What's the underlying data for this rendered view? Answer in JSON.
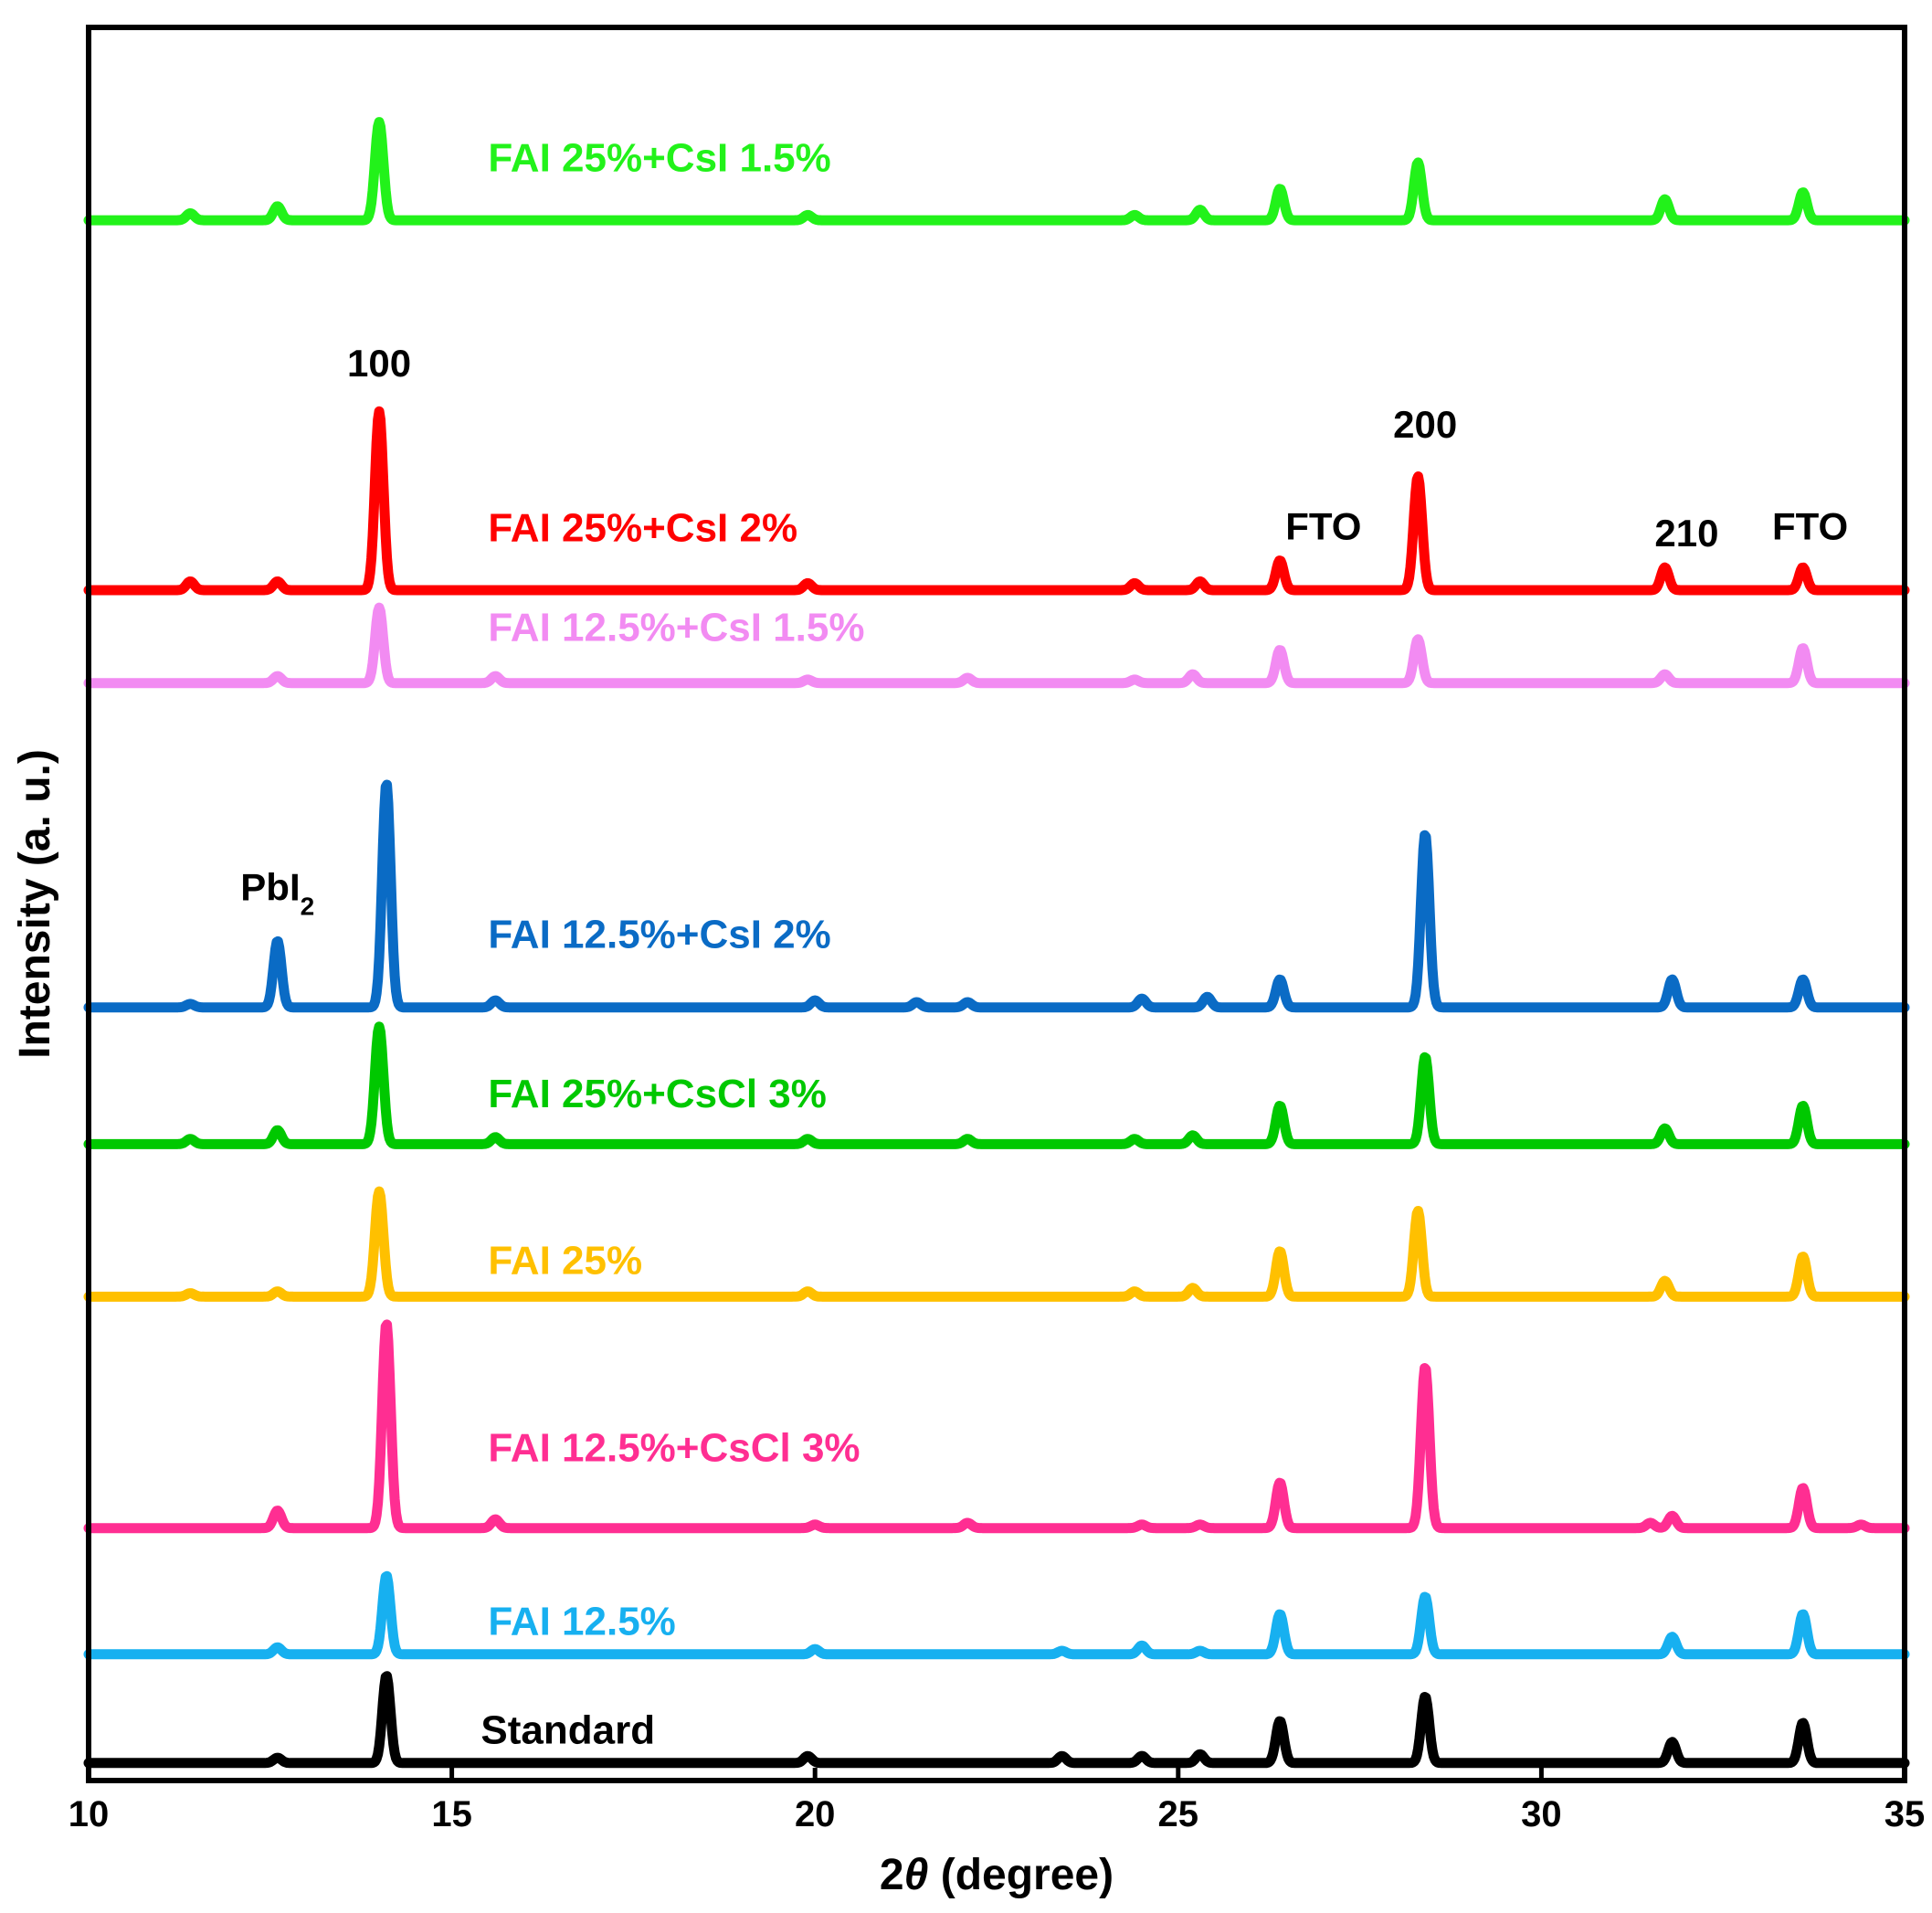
{
  "chart_data": {
    "type": "line",
    "title": "",
    "xlabel_prefix": "2",
    "xlabel_symbol": "θ",
    "xlabel_suffix": " (degree)",
    "ylabel": "Intensity (a. u.)",
    "xlim": [
      10,
      35
    ],
    "ylim": [
      0,
      100
    ],
    "xticks": [
      10,
      15,
      20,
      25,
      30,
      35
    ],
    "grid": false,
    "series": [
      {
        "name": "Standard",
        "color": "#000000",
        "baseline": 1.0,
        "peaks": [
          [
            12.6,
            0.3
          ],
          [
            14.1,
            5.0
          ],
          [
            19.9,
            0.4
          ],
          [
            23.4,
            0.4
          ],
          [
            24.5,
            0.4
          ],
          [
            25.3,
            0.5
          ],
          [
            26.4,
            2.4
          ],
          [
            28.4,
            3.8
          ],
          [
            31.8,
            1.2
          ],
          [
            33.6,
            2.3
          ]
        ]
      },
      {
        "name": "FAI 12.5%",
        "color": "#17B0F0",
        "baseline": 7.2,
        "peaks": [
          [
            12.6,
            0.4
          ],
          [
            14.1,
            4.5
          ],
          [
            20.0,
            0.3
          ],
          [
            23.4,
            0.2
          ],
          [
            24.5,
            0.5
          ],
          [
            25.3,
            0.2
          ],
          [
            26.4,
            2.3
          ],
          [
            28.4,
            3.3
          ],
          [
            31.8,
            1.0
          ],
          [
            33.6,
            2.3
          ]
        ]
      },
      {
        "name": "FAI 12.5%+CsCl 3%",
        "color": "#FF2E92",
        "baseline": 14.4,
        "peaks": [
          [
            12.6,
            1.0
          ],
          [
            14.1,
            11.7
          ],
          [
            15.6,
            0.5
          ],
          [
            20.0,
            0.2
          ],
          [
            22.1,
            0.3
          ],
          [
            24.5,
            0.2
          ],
          [
            25.3,
            0.2
          ],
          [
            26.4,
            2.6
          ],
          [
            28.4,
            9.2
          ],
          [
            31.5,
            0.3
          ],
          [
            31.8,
            0.7
          ],
          [
            33.6,
            2.3
          ],
          [
            34.4,
            0.2
          ]
        ]
      },
      {
        "name": "FAI 25%",
        "color": "#FFC000",
        "baseline": 27.6,
        "peaks": [
          [
            11.4,
            0.2
          ],
          [
            12.6,
            0.3
          ],
          [
            14.0,
            6.0
          ],
          [
            19.9,
            0.3
          ],
          [
            24.4,
            0.3
          ],
          [
            25.2,
            0.5
          ],
          [
            26.4,
            2.6
          ],
          [
            28.3,
            4.9
          ],
          [
            31.7,
            0.9
          ],
          [
            33.6,
            2.3
          ]
        ]
      },
      {
        "name": "FAI 25%+CsCl 3%",
        "color": "#00C800",
        "baseline": 36.3,
        "peaks": [
          [
            11.4,
            0.3
          ],
          [
            12.6,
            0.8
          ],
          [
            14.0,
            6.7
          ],
          [
            15.6,
            0.4
          ],
          [
            19.9,
            0.3
          ],
          [
            22.1,
            0.3
          ],
          [
            24.4,
            0.3
          ],
          [
            25.2,
            0.5
          ],
          [
            26.4,
            2.2
          ],
          [
            28.4,
            5.0
          ],
          [
            31.7,
            0.9
          ],
          [
            33.6,
            2.2
          ]
        ]
      },
      {
        "name": "FAI 12.5%+CsI 2%",
        "color": "#0A6BC5",
        "baseline": 44.1,
        "peaks": [
          [
            11.4,
            0.2
          ],
          [
            12.6,
            3.8
          ],
          [
            14.1,
            12.8
          ],
          [
            15.6,
            0.4
          ],
          [
            20.0,
            0.4
          ],
          [
            21.4,
            0.3
          ],
          [
            22.1,
            0.3
          ],
          [
            24.5,
            0.5
          ],
          [
            25.4,
            0.6
          ],
          [
            26.4,
            1.6
          ],
          [
            28.4,
            9.9
          ],
          [
            31.8,
            1.6
          ],
          [
            33.6,
            1.6
          ]
        ]
      },
      {
        "name": "FAI 12.5%+CsI 1.5%",
        "color": "#F28BF2",
        "baseline": 62.6,
        "peaks": [
          [
            12.6,
            0.4
          ],
          [
            14.0,
            4.3
          ],
          [
            15.6,
            0.4
          ],
          [
            19.9,
            0.2
          ],
          [
            22.1,
            0.3
          ],
          [
            24.4,
            0.2
          ],
          [
            25.2,
            0.5
          ],
          [
            26.4,
            1.9
          ],
          [
            28.3,
            2.5
          ],
          [
            31.7,
            0.5
          ],
          [
            33.6,
            2.0
          ]
        ]
      },
      {
        "name": "FAI 25%+CsI 2%",
        "color": "#FF0000",
        "baseline": 67.9,
        "peaks": [
          [
            11.4,
            0.5
          ],
          [
            12.6,
            0.5
          ],
          [
            14.0,
            10.2
          ],
          [
            19.9,
            0.4
          ],
          [
            24.4,
            0.4
          ],
          [
            25.3,
            0.5
          ],
          [
            26.4,
            1.7
          ],
          [
            28.3,
            6.5
          ],
          [
            31.7,
            1.3
          ],
          [
            33.6,
            1.3
          ]
        ]
      },
      {
        "name": "FAI 25%+CsI 1.5%",
        "color": "#22F21A",
        "baseline": 89.0,
        "peaks": [
          [
            11.4,
            0.4
          ],
          [
            12.6,
            0.8
          ],
          [
            14.0,
            5.6
          ],
          [
            19.9,
            0.3
          ],
          [
            24.4,
            0.3
          ],
          [
            25.3,
            0.6
          ],
          [
            26.4,
            1.8
          ],
          [
            28.3,
            3.3
          ],
          [
            31.7,
            1.2
          ],
          [
            33.6,
            1.6
          ]
        ]
      }
    ],
    "series_label_positions": [
      {
        "series": "FAI 25%+CsI 1.5%",
        "x": 15.5,
        "y": 91.8
      },
      {
        "series": "FAI 25%+CsI 2%",
        "x": 15.5,
        "y": 70.7
      },
      {
        "series": "FAI 12.5%+CsI 1.5%",
        "x": 15.5,
        "y": 65.0
      },
      {
        "series": "FAI 12.5%+CsI 2%",
        "x": 15.5,
        "y": 47.5
      },
      {
        "series": "FAI 25%+CsCl 3%",
        "x": 15.5,
        "y": 38.4
      },
      {
        "series": "FAI 25%",
        "x": 15.5,
        "y": 28.9
      },
      {
        "series": "FAI 12.5%+CsCl 3%",
        "x": 15.5,
        "y": 18.2
      },
      {
        "series": "FAI 12.5%",
        "x": 15.5,
        "y": 8.3
      },
      {
        "series": "Standard",
        "x": 15.4,
        "y": 2.1
      }
    ],
    "annotations": [
      {
        "text": "100",
        "x": 14.0,
        "y": 80.1
      },
      {
        "text": "200",
        "x": 28.4,
        "y": 76.6
      },
      {
        "text": "FTO",
        "x": 27.0,
        "y": 70.8
      },
      {
        "text": "210",
        "x": 32.0,
        "y": 70.4
      },
      {
        "text": "FTO",
        "x": 33.7,
        "y": 70.8
      },
      {
        "text": "PbI",
        "sub": "2",
        "x": 12.6,
        "y": 50.2
      }
    ]
  }
}
